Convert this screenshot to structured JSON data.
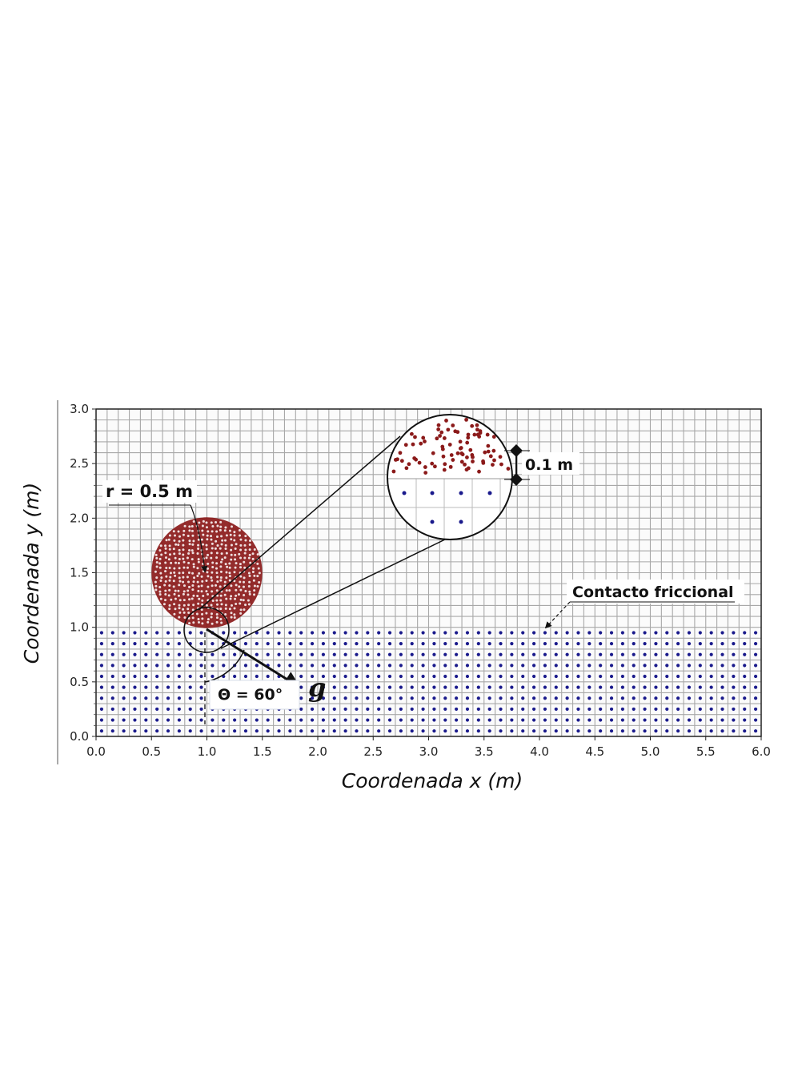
{
  "chart_data": {
    "type": "scatter",
    "xlabel": "Coordenada x (m)",
    "ylabel": "Coordenada y (m)",
    "xlim": [
      0.0,
      6.0
    ],
    "ylim": [
      0.0,
      3.0
    ],
    "xticks": [
      "0.0",
      "0.5",
      "1.0",
      "1.5",
      "2.0",
      "2.5",
      "3.0",
      "3.5",
      "4.0",
      "4.5",
      "5.0",
      "5.5",
      "6.0"
    ],
    "yticks": [
      "0.0",
      "0.5",
      "1.0",
      "1.5",
      "2.0",
      "2.5",
      "3.0"
    ],
    "grid": true,
    "grid_spacing_m": 0.1,
    "series": [
      {
        "color": "#1a1a8c",
        "region": {
          "x": [
            0.0,
            6.0
          ],
          "y": [
            0.0,
            1.0
          ]
        },
        "spacing_m": 0.1
      },
      {
        "color": "#8b1a1a",
        "region": {
          "center": [
            1.0,
            1.5
          ],
          "radius": 0.5
        }
      }
    ],
    "annotations": {
      "radius_label": "r = 0.5 m",
      "thickness_label": "0.1 m",
      "contact_label": "Contacto friccional",
      "angle_label": "Θ = 60°",
      "gravity_label": "g",
      "gravity_angle_deg": 60,
      "zoom_center": [
        3.2,
        2.4
      ],
      "contact_point": [
        1.0,
        1.0
      ]
    }
  }
}
